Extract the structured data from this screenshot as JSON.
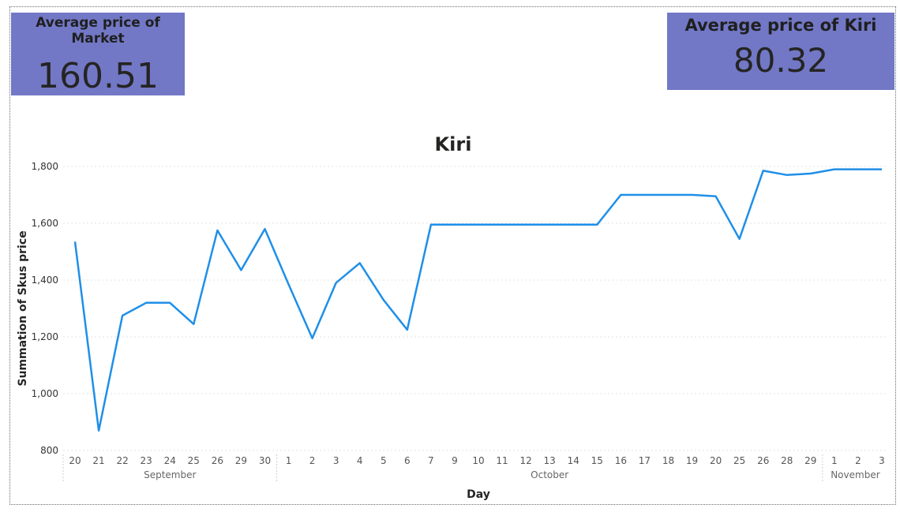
{
  "kpis": {
    "market": {
      "title": "Average price of Market",
      "value": "160.51"
    },
    "kiri": {
      "title": "Average price of Kiri",
      "value": "80.32"
    }
  },
  "chart_data": {
    "type": "line",
    "title": "Kiri",
    "xlabel": "Day",
    "ylabel": "Summation of Skus price",
    "ylim": [
      800,
      1800
    ],
    "yticks": [
      800,
      1000,
      1200,
      1400,
      1600,
      1800
    ],
    "ytick_labels": [
      "800",
      "1,000",
      "1,200",
      "1,400",
      "1,600",
      "1,800"
    ],
    "grid": true,
    "line_color": "#1f8fe8",
    "x": [
      "20",
      "21",
      "22",
      "23",
      "24",
      "25",
      "26",
      "29",
      "30",
      "1",
      "2",
      "3",
      "4",
      "5",
      "6",
      "7",
      "9",
      "10",
      "11",
      "12",
      "13",
      "14",
      "15",
      "16",
      "17",
      "18",
      "19",
      "20",
      "25",
      "26",
      "28",
      "29",
      "1",
      "2",
      "3"
    ],
    "month_groups": [
      {
        "label": "September",
        "start": 0,
        "end": 8
      },
      {
        "label": "October",
        "start": 9,
        "end": 31
      },
      {
        "label": "November",
        "start": 32,
        "end": 34
      }
    ],
    "series": [
      {
        "values": [
          1535,
          870,
          1275,
          1320,
          1320,
          1245,
          1575,
          1435,
          1580,
          1385,
          1195,
          1390,
          1460,
          1330,
          1225,
          1595,
          1595,
          1595,
          1595,
          1595,
          1595,
          1595,
          1595,
          1700,
          1700,
          1700,
          1700,
          1695,
          1545,
          1785,
          1770,
          1775,
          1790,
          1790,
          1790
        ]
      }
    ]
  }
}
